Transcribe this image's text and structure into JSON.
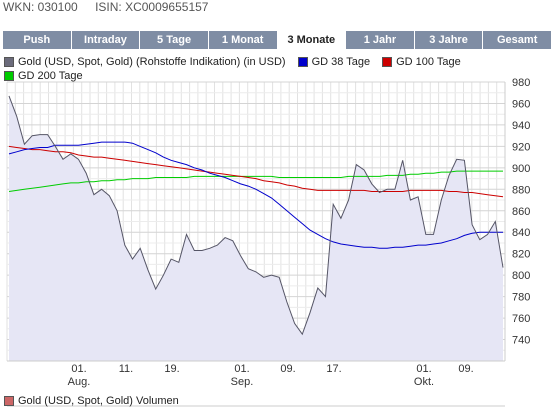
{
  "header": {
    "wkn": "WKN: 030100",
    "isin": "ISIN: XC0009655157"
  },
  "tabs": [
    {
      "label": "Push",
      "active": false
    },
    {
      "label": "Intraday",
      "active": false
    },
    {
      "label": "5 Tage",
      "active": false
    },
    {
      "label": "1 Monat",
      "active": false
    },
    {
      "label": "3 Monate",
      "active": true
    },
    {
      "label": "1 Jahr",
      "active": false
    },
    {
      "label": "3 Jahre",
      "active": false
    },
    {
      "label": "Gesamt",
      "active": false
    }
  ],
  "legend": [
    {
      "label": "Gold (USD, Spot, Gold) (Rohstoffe Indikation) (in USD)",
      "color": "#6b6b7b"
    },
    {
      "label": "GD 38 Tage",
      "color": "#0000cc"
    },
    {
      "label": "GD 100 Tage",
      "color": "#cc0000"
    },
    {
      "label": "GD 200 Tage",
      "color": "#00cc00"
    }
  ],
  "volume_legend": {
    "label": "Gold (USD, Spot, Gold) Volumen",
    "color": "#cc6666"
  },
  "chart_data": {
    "type": "line",
    "x_tick_labels": [
      {
        "day": "01.",
        "month": "Aug."
      },
      {
        "day": "11.",
        "month": ""
      },
      {
        "day": "19.",
        "month": ""
      },
      {
        "day": "01.",
        "month": "Sep."
      },
      {
        "day": "09.",
        "month": ""
      },
      {
        "day": "17.",
        "month": ""
      },
      {
        "day": "01.",
        "month": "Okt."
      },
      {
        "day": "09.",
        "month": ""
      }
    ],
    "y_ticks": [
      740,
      760,
      780,
      800,
      820,
      840,
      860,
      880,
      900,
      920,
      940,
      960,
      980
    ],
    "ylim": [
      720,
      980
    ],
    "grid": true,
    "series": [
      {
        "name": "Gold (USD, Spot, Gold) (Rohstoffe Indikation) (in USD)",
        "color": "#555566",
        "fill": "#e6e6f5",
        "values": [
          967,
          948,
          922,
          930,
          931,
          931,
          920,
          908,
          913,
          908,
          895,
          875,
          880,
          874,
          860,
          828,
          815,
          825,
          805,
          787,
          800,
          815,
          812,
          838,
          823,
          823,
          825,
          828,
          835,
          832,
          818,
          806,
          803,
          798,
          800,
          798,
          775,
          755,
          745,
          765,
          788,
          780,
          866,
          853,
          870,
          903,
          898,
          885,
          877,
          880,
          880,
          907,
          870,
          873,
          838,
          838,
          870,
          893,
          908,
          907,
          847,
          833,
          838,
          850,
          807
        ]
      },
      {
        "name": "GD 38 Tage",
        "color": "#0000cc",
        "values": [
          913,
          915,
          917,
          918,
          919,
          919,
          921,
          921,
          921,
          921,
          922,
          923,
          924,
          924,
          924,
          924,
          923,
          920,
          917,
          914,
          910,
          907,
          905,
          903,
          900,
          898,
          895,
          893,
          891,
          888,
          885,
          883,
          880,
          876,
          872,
          866,
          860,
          854,
          848,
          842,
          838,
          834,
          831,
          829,
          828,
          827,
          826,
          826,
          825,
          825,
          826,
          826,
          827,
          828,
          828,
          829,
          830,
          832,
          834,
          837,
          839,
          840,
          840,
          840,
          840
        ]
      },
      {
        "name": "GD 100 Tage",
        "color": "#cc0000",
        "values": [
          920,
          919,
          918,
          917,
          917,
          916,
          915,
          915,
          914,
          912,
          911,
          910,
          910,
          909,
          908,
          907,
          906,
          905,
          904,
          903,
          902,
          901,
          900,
          899,
          898,
          897,
          896,
          895,
          894,
          893,
          892,
          891,
          890,
          888,
          887,
          886,
          884,
          883,
          881,
          880,
          879,
          879,
          879,
          879,
          879,
          879,
          879,
          878,
          878,
          878,
          878,
          878,
          879,
          879,
          879,
          879,
          879,
          878,
          878,
          877,
          877,
          876,
          875,
          874,
          873
        ]
      },
      {
        "name": "GD 200 Tage",
        "color": "#00cc00",
        "values": [
          878,
          879,
          880,
          881,
          882,
          883,
          884,
          885,
          886,
          886,
          887,
          887,
          888,
          888,
          889,
          889,
          890,
          890,
          890,
          891,
          891,
          891,
          891,
          891,
          892,
          892,
          892,
          892,
          892,
          892,
          892,
          892,
          892,
          892,
          892,
          891,
          891,
          891,
          891,
          891,
          891,
          891,
          891,
          891,
          892,
          892,
          892,
          892,
          892,
          893,
          893,
          893,
          894,
          894,
          895,
          895,
          896,
          896,
          897,
          897,
          897,
          897,
          897,
          897,
          897
        ]
      }
    ]
  }
}
